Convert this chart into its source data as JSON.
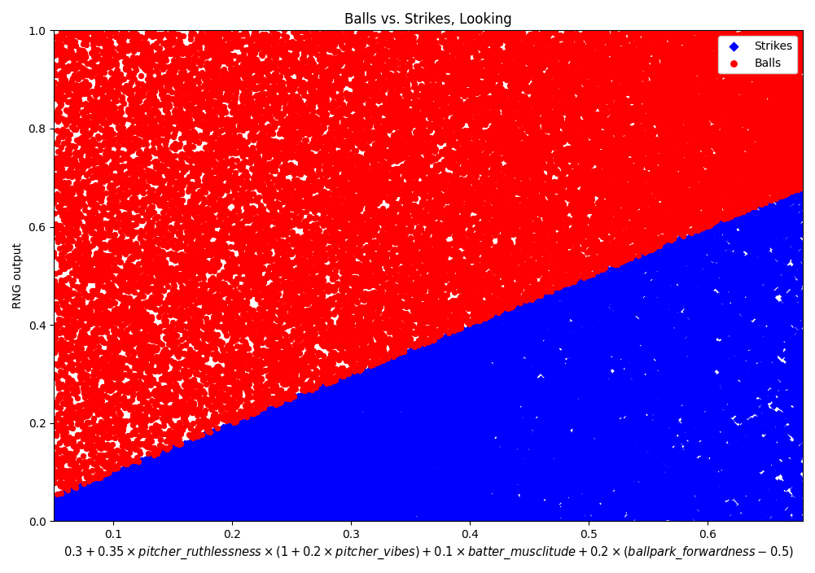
{
  "title": "Balls vs. Strikes, Looking",
  "ylabel": "RNG output",
  "xlim": [
    0.05,
    0.68
  ],
  "ylim": [
    0.0,
    1.0
  ],
  "n_points": 30000,
  "ball_color": "#ff0000",
  "strike_color": "#0000ff",
  "ball_marker": "o",
  "strike_marker": "D",
  "ball_alpha": 1.0,
  "strike_alpha": 1.0,
  "ball_marker_size": 28,
  "strike_marker_size": 28,
  "seed": 42,
  "x_min": 0.05,
  "x_max": 0.68,
  "xticks": [
    0.1,
    0.2,
    0.3,
    0.4,
    0.5,
    0.6
  ],
  "yticks": [
    0.0,
    0.2,
    0.4,
    0.6,
    0.8,
    1.0
  ]
}
